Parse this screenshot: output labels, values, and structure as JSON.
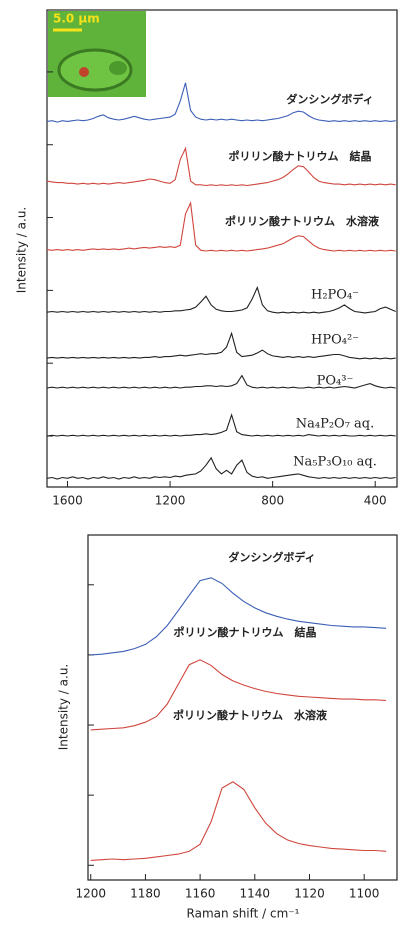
{
  "chart_data": [
    {
      "type": "line",
      "ylabel": "Intensity / a.u.",
      "inset_label": "5.0 μm",
      "xlim": [
        1680,
        315
      ],
      "xticks": [
        1600,
        1200,
        800,
        400
      ],
      "ylim": [
        -0.7,
        5.85
      ],
      "yticks": [
        0,
        1,
        2,
        3,
        4,
        5
      ],
      "x": [
        1680,
        1660,
        1640,
        1620,
        1600,
        1580,
        1560,
        1540,
        1520,
        1500,
        1480,
        1460,
        1440,
        1420,
        1400,
        1380,
        1360,
        1340,
        1320,
        1300,
        1280,
        1260,
        1240,
        1220,
        1200,
        1180,
        1160,
        1140,
        1120,
        1100,
        1080,
        1060,
        1040,
        1020,
        1000,
        980,
        960,
        940,
        920,
        900,
        880,
        860,
        840,
        820,
        800,
        780,
        760,
        740,
        720,
        700,
        680,
        660,
        640,
        620,
        600,
        580,
        560,
        540,
        520,
        500,
        480,
        460,
        440,
        420,
        400,
        380,
        360,
        340,
        320
      ],
      "series": [
        {
          "name": "ダンシングボディ",
          "color": "#3b5fb6",
          "values": [
            4.32,
            4.33,
            4.31,
            4.33,
            4.32,
            4.33,
            4.34,
            4.33,
            4.34,
            4.36,
            4.39,
            4.41,
            4.37,
            4.35,
            4.34,
            4.35,
            4.37,
            4.39,
            4.37,
            4.35,
            4.34,
            4.35,
            4.36,
            4.37,
            4.38,
            4.42,
            4.6,
            4.85,
            4.47,
            4.38,
            4.35,
            4.34,
            4.35,
            4.34,
            4.35,
            4.34,
            4.35,
            4.34,
            4.33,
            4.34,
            4.33,
            4.34,
            4.33,
            4.34,
            4.35,
            4.36,
            4.38,
            4.4,
            4.44,
            4.46,
            4.45,
            4.4,
            4.36,
            4.34,
            4.33,
            4.32,
            4.33,
            4.32,
            4.33,
            4.32,
            4.33,
            4.32,
            4.33,
            4.32,
            4.33,
            4.32,
            4.33,
            4.32,
            4.33
          ]
        },
        {
          "name": "ポリリン酸ナトリウム　結晶",
          "color": "#d0463d",
          "values": [
            3.5,
            3.49,
            3.48,
            3.48,
            3.47,
            3.47,
            3.46,
            3.47,
            3.46,
            3.47,
            3.46,
            3.47,
            3.46,
            3.47,
            3.48,
            3.47,
            3.48,
            3.49,
            3.5,
            3.51,
            3.53,
            3.52,
            3.5,
            3.48,
            3.47,
            3.52,
            3.8,
            3.95,
            3.5,
            3.45,
            3.45,
            3.44,
            3.45,
            3.44,
            3.45,
            3.44,
            3.45,
            3.44,
            3.45,
            3.44,
            3.45,
            3.46,
            3.47,
            3.48,
            3.5,
            3.52,
            3.55,
            3.6,
            3.66,
            3.71,
            3.7,
            3.63,
            3.55,
            3.5,
            3.48,
            3.47,
            3.46,
            3.46,
            3.45,
            3.46,
            3.45,
            3.46,
            3.45,
            3.46,
            3.45,
            3.46,
            3.45,
            3.46,
            3.45
          ]
        },
        {
          "name": "ポリリン酸ナトリウム　水溶液",
          "color": "#d0463d",
          "values": [
            2.56,
            2.55,
            2.56,
            2.55,
            2.56,
            2.55,
            2.56,
            2.55,
            2.56,
            2.57,
            2.56,
            2.57,
            2.56,
            2.57,
            2.56,
            2.57,
            2.58,
            2.57,
            2.58,
            2.59,
            2.58,
            2.59,
            2.6,
            2.59,
            2.6,
            2.59,
            2.62,
            3.05,
            3.2,
            2.62,
            2.55,
            2.54,
            2.55,
            2.54,
            2.55,
            2.54,
            2.55,
            2.54,
            2.55,
            2.54,
            2.55,
            2.56,
            2.57,
            2.58,
            2.6,
            2.62,
            2.64,
            2.68,
            2.72,
            2.75,
            2.74,
            2.68,
            2.62,
            2.58,
            2.56,
            2.55,
            2.54,
            2.55,
            2.54,
            2.55,
            2.54,
            2.55,
            2.54,
            2.55,
            2.54,
            2.55,
            2.54,
            2.55,
            2.54
          ]
        },
        {
          "name": "H₂PO₄⁻",
          "color": "#222222",
          "values": [
            1.7,
            1.71,
            1.7,
            1.71,
            1.7,
            1.71,
            1.7,
            1.71,
            1.7,
            1.71,
            1.7,
            1.71,
            1.7,
            1.71,
            1.7,
            1.71,
            1.7,
            1.71,
            1.7,
            1.71,
            1.7,
            1.71,
            1.7,
            1.71,
            1.71,
            1.72,
            1.72,
            1.73,
            1.74,
            1.77,
            1.84,
            1.92,
            1.8,
            1.74,
            1.72,
            1.71,
            1.71,
            1.72,
            1.73,
            1.76,
            1.88,
            2.04,
            1.8,
            1.72,
            1.7,
            1.69,
            1.7,
            1.69,
            1.7,
            1.69,
            1.7,
            1.69,
            1.7,
            1.69,
            1.7,
            1.71,
            1.73,
            1.76,
            1.8,
            1.75,
            1.71,
            1.7,
            1.69,
            1.7,
            1.71,
            1.75,
            1.77,
            1.74,
            1.71
          ]
        },
        {
          "name": "HPO₄²⁻",
          "color": "#222222",
          "values": [
            1.07,
            1.08,
            1.07,
            1.08,
            1.07,
            1.08,
            1.07,
            1.08,
            1.07,
            1.08,
            1.07,
            1.08,
            1.07,
            1.08,
            1.07,
            1.08,
            1.07,
            1.08,
            1.07,
            1.08,
            1.08,
            1.09,
            1.08,
            1.09,
            1.09,
            1.1,
            1.11,
            1.1,
            1.11,
            1.12,
            1.13,
            1.12,
            1.13,
            1.13,
            1.15,
            1.22,
            1.41,
            1.15,
            1.09,
            1.1,
            1.11,
            1.14,
            1.18,
            1.13,
            1.1,
            1.09,
            1.08,
            1.09,
            1.08,
            1.09,
            1.08,
            1.09,
            1.08,
            1.09,
            1.1,
            1.11,
            1.12,
            1.12,
            1.1,
            1.08,
            1.07,
            1.06,
            1.07,
            1.06,
            1.07,
            1.06,
            1.07,
            1.06,
            1.07
          ]
        },
        {
          "name": "PO₄³⁻",
          "color": "#222222",
          "values": [
            0.66,
            0.67,
            0.66,
            0.67,
            0.66,
            0.67,
            0.66,
            0.67,
            0.66,
            0.67,
            0.66,
            0.67,
            0.66,
            0.67,
            0.66,
            0.67,
            0.66,
            0.67,
            0.66,
            0.67,
            0.66,
            0.67,
            0.66,
            0.67,
            0.66,
            0.67,
            0.66,
            0.67,
            0.67,
            0.68,
            0.68,
            0.69,
            0.69,
            0.68,
            0.69,
            0.68,
            0.69,
            0.72,
            0.83,
            0.7,
            0.67,
            0.66,
            0.67,
            0.66,
            0.67,
            0.66,
            0.67,
            0.66,
            0.67,
            0.66,
            0.66,
            0.67,
            0.66,
            0.67,
            0.66,
            0.67,
            0.66,
            0.67,
            0.68,
            0.67,
            0.66,
            0.68,
            0.7,
            0.72,
            0.69,
            0.67,
            0.66,
            0.67,
            0.66
          ]
        },
        {
          "name": "Na₄P₂O₇ aq.",
          "color": "#222222",
          "values": [
            0.0,
            0.01,
            0.0,
            0.01,
            0.0,
            0.01,
            0.0,
            0.01,
            0.0,
            0.01,
            0.0,
            0.01,
            0.0,
            0.01,
            0.0,
            0.01,
            0.0,
            0.01,
            0.0,
            0.01,
            0.0,
            0.01,
            0.0,
            0.01,
            0.0,
            0.01,
            0.0,
            0.01,
            0.01,
            0.02,
            0.02,
            0.03,
            0.02,
            0.03,
            0.05,
            0.08,
            0.29,
            0.06,
            0.02,
            0.01,
            0.0,
            0.01,
            0.0,
            0.01,
            0.0,
            0.01,
            0.0,
            0.01,
            0.0,
            0.01,
            0.0,
            0.02,
            0.01,
            0.0,
            0.01,
            0.0,
            0.01,
            0.0,
            0.01,
            0.0,
            0.0,
            0.01,
            0.0,
            0.01,
            0.0,
            0.01,
            0.0,
            0.01,
            0.0
          ]
        },
        {
          "name": "Na₅P₃O₁₀ aq.",
          "color": "#222222",
          "values": [
            -0.58,
            -0.57,
            -0.59,
            -0.57,
            -0.58,
            -0.56,
            -0.58,
            -0.57,
            -0.59,
            -0.57,
            -0.58,
            -0.56,
            -0.58,
            -0.57,
            -0.59,
            -0.57,
            -0.58,
            -0.56,
            -0.58,
            -0.57,
            -0.58,
            -0.56,
            -0.57,
            -0.56,
            -0.57,
            -0.55,
            -0.56,
            -0.54,
            -0.53,
            -0.52,
            -0.48,
            -0.4,
            -0.3,
            -0.45,
            -0.52,
            -0.47,
            -0.52,
            -0.4,
            -0.33,
            -0.5,
            -0.55,
            -0.57,
            -0.56,
            -0.58,
            -0.57,
            -0.56,
            -0.55,
            -0.54,
            -0.53,
            -0.52,
            -0.54,
            -0.56,
            -0.57,
            -0.58,
            -0.57,
            -0.58,
            -0.57,
            -0.58,
            -0.57,
            -0.58,
            -0.57,
            -0.58,
            -0.57,
            -0.58,
            -0.57,
            -0.58,
            -0.57,
            -0.58,
            -0.57
          ]
        }
      ]
    },
    {
      "type": "line",
      "ylabel": "Intensity / a.u.",
      "xlabel": "Raman shift / cm⁻¹",
      "xlim": [
        1201,
        1088
      ],
      "xticks": [
        1200,
        1180,
        1160,
        1140,
        1120,
        1100
      ],
      "ylim": [
        -0.21,
        4.71
      ],
      "yticks": [
        0,
        1,
        2,
        3,
        4
      ],
      "x": [
        1200,
        1196,
        1192,
        1188,
        1184,
        1180,
        1176,
        1172,
        1168,
        1164,
        1160,
        1156,
        1152,
        1148,
        1144,
        1140,
        1136,
        1132,
        1128,
        1124,
        1120,
        1116,
        1112,
        1108,
        1104,
        1100,
        1096,
        1092
      ],
      "series": [
        {
          "name": "ダンシングボディ",
          "color": "#3b5fb6",
          "values": [
            3.0,
            3.01,
            3.03,
            3.05,
            3.09,
            3.15,
            3.26,
            3.42,
            3.63,
            3.85,
            4.06,
            4.1,
            4.02,
            3.88,
            3.76,
            3.67,
            3.6,
            3.55,
            3.51,
            3.48,
            3.46,
            3.44,
            3.42,
            3.41,
            3.4,
            3.4,
            3.39,
            3.38
          ]
        },
        {
          "name": "ポリリン酸ナトリウム　結晶",
          "color": "#d0463d",
          "values": [
            1.93,
            1.94,
            1.95,
            1.96,
            1.99,
            2.04,
            2.12,
            2.3,
            2.58,
            2.86,
            2.93,
            2.85,
            2.72,
            2.63,
            2.57,
            2.52,
            2.48,
            2.45,
            2.43,
            2.41,
            2.4,
            2.39,
            2.38,
            2.37,
            2.37,
            2.36,
            2.36,
            2.35
          ]
        },
        {
          "name": "ポリリン酸ナトリウム　水溶液",
          "color": "#d0463d",
          "values": [
            0.07,
            0.08,
            0.09,
            0.08,
            0.09,
            0.1,
            0.12,
            0.14,
            0.16,
            0.2,
            0.3,
            0.62,
            1.1,
            1.19,
            1.08,
            0.82,
            0.6,
            0.45,
            0.36,
            0.31,
            0.28,
            0.26,
            0.24,
            0.23,
            0.22,
            0.21,
            0.21,
            0.2
          ]
        }
      ]
    }
  ]
}
